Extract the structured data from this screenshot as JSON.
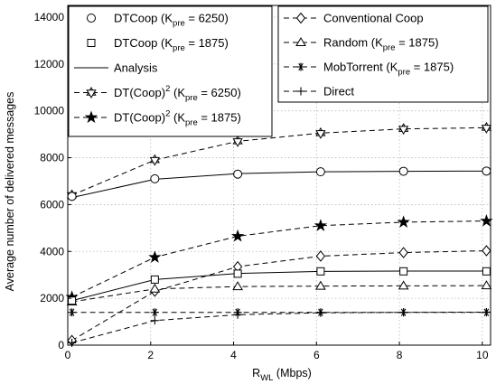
{
  "chart_data": {
    "type": "line",
    "xlabel": {
      "main": "R",
      "sub": "WL",
      "tail": " (Mbps)"
    },
    "ylabel": "Average number of delivered messages",
    "xlim": [
      0,
      10.2
    ],
    "ylim": [
      0,
      14500
    ],
    "xticks": [
      0,
      2,
      4,
      6,
      8,
      10
    ],
    "yticks": [
      0,
      2000,
      4000,
      6000,
      8000,
      10000,
      12000,
      14000
    ],
    "grid": true,
    "x": [
      0.1,
      2.1,
      4.1,
      6.1,
      8.1,
      10.1
    ],
    "series": [
      {
        "id": "dtcoop6250",
        "marker": "circle",
        "line": "none",
        "values": [
          6350,
          7100,
          7300,
          7400,
          7420,
          7430
        ]
      },
      {
        "id": "dtcoop1875",
        "marker": "square",
        "line": "none",
        "values": [
          1900,
          2800,
          3050,
          3150,
          3150,
          3150
        ]
      },
      {
        "id": "analysis6250",
        "marker": "none",
        "line": "solid",
        "values": [
          6300,
          7080,
          7320,
          7400,
          7420,
          7430
        ]
      },
      {
        "id": "analysis1875",
        "marker": "none",
        "line": "solid",
        "values": [
          1900,
          2800,
          3060,
          3150,
          3160,
          3160
        ]
      },
      {
        "id": "dtcoop2_6250",
        "marker": "hexstar",
        "line": "dashed",
        "values": [
          6400,
          7900,
          8700,
          9050,
          9230,
          9280
        ]
      },
      {
        "id": "dtcoop2_1875",
        "marker": "star",
        "line": "dashed",
        "values": [
          2050,
          3750,
          4650,
          5100,
          5250,
          5300
        ]
      },
      {
        "id": "conventional",
        "marker": "diamond",
        "line": "dashed",
        "values": [
          200,
          2300,
          3350,
          3800,
          3950,
          4030
        ]
      },
      {
        "id": "random",
        "marker": "triangle",
        "line": "dashed",
        "values": [
          1850,
          2400,
          2500,
          2520,
          2530,
          2540
        ]
      },
      {
        "id": "mobtorrent",
        "marker": "asterisk",
        "line": "dashed",
        "values": [
          1400,
          1400,
          1400,
          1400,
          1400,
          1400
        ]
      },
      {
        "id": "direct",
        "marker": "plus",
        "line": "dashed",
        "values": [
          100,
          1050,
          1300,
          1380,
          1400,
          1410
        ]
      }
    ],
    "legend_left": [
      {
        "series": "dtcoop6250",
        "label": "DTCoop (K",
        "sub": "pre",
        "tail": " = 6250)"
      },
      {
        "series": "dtcoop1875",
        "label": "DTCoop (K",
        "sub": "pre",
        "tail": " = 1875)"
      },
      {
        "series": "analysis6250",
        "label": "Analysis",
        "sub": "",
        "tail": ""
      },
      {
        "series": "dtcoop2_6250",
        "label": "DT(Coop)",
        "sup": "2",
        "label2": " (K",
        "sub": "pre",
        "tail": " = 6250)"
      },
      {
        "series": "dtcoop2_1875",
        "label": "DT(Coop)",
        "sup": "2",
        "label2": " (K",
        "sub": "pre",
        "tail": " = 1875)"
      }
    ],
    "legend_right": [
      {
        "series": "conventional",
        "label": "Conventional Coop",
        "sub": "",
        "tail": ""
      },
      {
        "series": "random",
        "label": "Random (K",
        "sub": "pre",
        "tail": " = 1875)"
      },
      {
        "series": "mobtorrent",
        "label": "MobTorrent (K",
        "sub": "pre",
        "tail": " = 1875)"
      },
      {
        "series": "direct",
        "label": "Direct",
        "sub": "",
        "tail": ""
      }
    ]
  }
}
